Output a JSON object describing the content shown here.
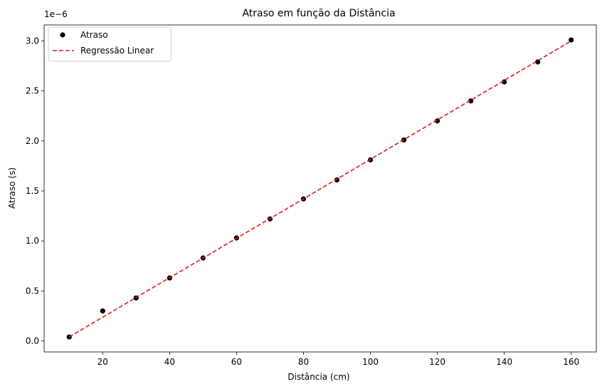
{
  "chart_data": {
    "type": "scatter",
    "title": "Atraso em função da Distância",
    "xlabel": "Distância (cm)",
    "ylabel": "Atraso (s)",
    "y_offset_label": "1e−6",
    "xlim": [
      2.5,
      167.5
    ],
    "ylim": [
      -0.11,
      3.16
    ],
    "y_scale_exponent": -6,
    "x_ticks": [
      20,
      40,
      60,
      80,
      100,
      120,
      140,
      160
    ],
    "x_tick_labels": [
      "20",
      "40",
      "60",
      "80",
      "100",
      "120",
      "140",
      "160"
    ],
    "y_ticks": [
      0.0,
      0.5,
      1.0,
      1.5,
      2.0,
      2.5,
      3.0
    ],
    "y_tick_labels": [
      "0.0",
      "0.5",
      "1.0",
      "1.5",
      "2.0",
      "2.5",
      "3.0"
    ],
    "grid": false,
    "legend_position": "top-left",
    "series": [
      {
        "name": "Atraso",
        "kind": "scatter",
        "color": "#000000",
        "x": [
          10,
          20,
          30,
          40,
          50,
          60,
          70,
          80,
          90,
          100,
          110,
          120,
          130,
          140,
          150,
          160
        ],
        "y": [
          0.04,
          0.3,
          0.43,
          0.63,
          0.83,
          1.03,
          1.22,
          1.42,
          1.61,
          1.81,
          2.01,
          2.2,
          2.4,
          2.59,
          2.79,
          3.01
        ]
      },
      {
        "name": "Regressão Linear",
        "kind": "line",
        "style": "dashed",
        "color": "#e41a1c",
        "x": [
          10,
          160
        ],
        "y": [
          0.04,
          3.0
        ]
      }
    ]
  }
}
